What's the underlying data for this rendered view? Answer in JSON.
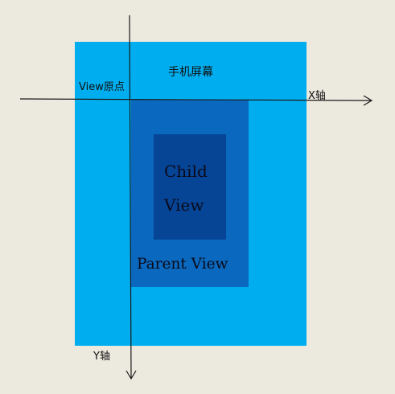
{
  "labels": {
    "screen": "手机屏幕",
    "view_origin": "View原点",
    "x_axis": "X轴",
    "y_axis": "Y轴",
    "child_view": "Child View",
    "parent_view": "Parent View"
  },
  "colors": {
    "background": "#ece9df",
    "screen": "#00aeef",
    "parent_view": "#0a69be",
    "child_view": "#064596",
    "axis": "#1a1a1a"
  }
}
